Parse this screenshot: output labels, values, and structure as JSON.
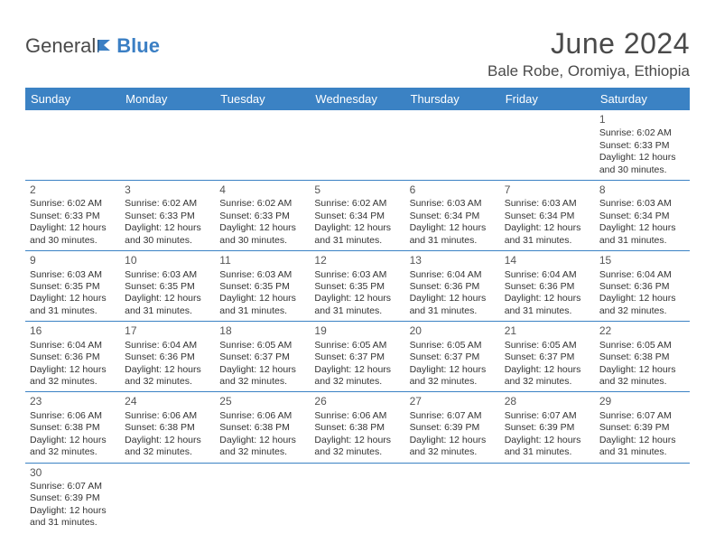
{
  "brand": {
    "part1": "General",
    "part2": "Blue"
  },
  "title": "June 2024",
  "location": "Bale Robe, Oromiya, Ethiopia",
  "colors": {
    "header_bg": "#3b82c4",
    "header_text": "#ffffff",
    "cell_border": "#3b82c4",
    "body_text": "#333333",
    "title_text": "#4a4a4a",
    "background": "#ffffff"
  },
  "typography": {
    "title_fontsize": 32,
    "location_fontsize": 17,
    "dayheader_fontsize": 13,
    "cell_fontsize": 10.5,
    "daynum_fontsize": 12
  },
  "layout": {
    "columns": 7,
    "rows": 6,
    "first_weekday_index": 6
  },
  "weekdays": [
    "Sunday",
    "Monday",
    "Tuesday",
    "Wednesday",
    "Thursday",
    "Friday",
    "Saturday"
  ],
  "days": [
    {
      "n": 1,
      "sunrise": "6:02 AM",
      "sunset": "6:33 PM",
      "dl_h": 12,
      "dl_m": 30
    },
    {
      "n": 2,
      "sunrise": "6:02 AM",
      "sunset": "6:33 PM",
      "dl_h": 12,
      "dl_m": 30
    },
    {
      "n": 3,
      "sunrise": "6:02 AM",
      "sunset": "6:33 PM",
      "dl_h": 12,
      "dl_m": 30
    },
    {
      "n": 4,
      "sunrise": "6:02 AM",
      "sunset": "6:33 PM",
      "dl_h": 12,
      "dl_m": 30
    },
    {
      "n": 5,
      "sunrise": "6:02 AM",
      "sunset": "6:34 PM",
      "dl_h": 12,
      "dl_m": 31
    },
    {
      "n": 6,
      "sunrise": "6:03 AM",
      "sunset": "6:34 PM",
      "dl_h": 12,
      "dl_m": 31
    },
    {
      "n": 7,
      "sunrise": "6:03 AM",
      "sunset": "6:34 PM",
      "dl_h": 12,
      "dl_m": 31
    },
    {
      "n": 8,
      "sunrise": "6:03 AM",
      "sunset": "6:34 PM",
      "dl_h": 12,
      "dl_m": 31
    },
    {
      "n": 9,
      "sunrise": "6:03 AM",
      "sunset": "6:35 PM",
      "dl_h": 12,
      "dl_m": 31
    },
    {
      "n": 10,
      "sunrise": "6:03 AM",
      "sunset": "6:35 PM",
      "dl_h": 12,
      "dl_m": 31
    },
    {
      "n": 11,
      "sunrise": "6:03 AM",
      "sunset": "6:35 PM",
      "dl_h": 12,
      "dl_m": 31
    },
    {
      "n": 12,
      "sunrise": "6:03 AM",
      "sunset": "6:35 PM",
      "dl_h": 12,
      "dl_m": 31
    },
    {
      "n": 13,
      "sunrise": "6:04 AM",
      "sunset": "6:36 PM",
      "dl_h": 12,
      "dl_m": 31
    },
    {
      "n": 14,
      "sunrise": "6:04 AM",
      "sunset": "6:36 PM",
      "dl_h": 12,
      "dl_m": 31
    },
    {
      "n": 15,
      "sunrise": "6:04 AM",
      "sunset": "6:36 PM",
      "dl_h": 12,
      "dl_m": 32
    },
    {
      "n": 16,
      "sunrise": "6:04 AM",
      "sunset": "6:36 PM",
      "dl_h": 12,
      "dl_m": 32
    },
    {
      "n": 17,
      "sunrise": "6:04 AM",
      "sunset": "6:36 PM",
      "dl_h": 12,
      "dl_m": 32
    },
    {
      "n": 18,
      "sunrise": "6:05 AM",
      "sunset": "6:37 PM",
      "dl_h": 12,
      "dl_m": 32
    },
    {
      "n": 19,
      "sunrise": "6:05 AM",
      "sunset": "6:37 PM",
      "dl_h": 12,
      "dl_m": 32
    },
    {
      "n": 20,
      "sunrise": "6:05 AM",
      "sunset": "6:37 PM",
      "dl_h": 12,
      "dl_m": 32
    },
    {
      "n": 21,
      "sunrise": "6:05 AM",
      "sunset": "6:37 PM",
      "dl_h": 12,
      "dl_m": 32
    },
    {
      "n": 22,
      "sunrise": "6:05 AM",
      "sunset": "6:38 PM",
      "dl_h": 12,
      "dl_m": 32
    },
    {
      "n": 23,
      "sunrise": "6:06 AM",
      "sunset": "6:38 PM",
      "dl_h": 12,
      "dl_m": 32
    },
    {
      "n": 24,
      "sunrise": "6:06 AM",
      "sunset": "6:38 PM",
      "dl_h": 12,
      "dl_m": 32
    },
    {
      "n": 25,
      "sunrise": "6:06 AM",
      "sunset": "6:38 PM",
      "dl_h": 12,
      "dl_m": 32
    },
    {
      "n": 26,
      "sunrise": "6:06 AM",
      "sunset": "6:38 PM",
      "dl_h": 12,
      "dl_m": 32
    },
    {
      "n": 27,
      "sunrise": "6:07 AM",
      "sunset": "6:39 PM",
      "dl_h": 12,
      "dl_m": 32
    },
    {
      "n": 28,
      "sunrise": "6:07 AM",
      "sunset": "6:39 PM",
      "dl_h": 12,
      "dl_m": 31
    },
    {
      "n": 29,
      "sunrise": "6:07 AM",
      "sunset": "6:39 PM",
      "dl_h": 12,
      "dl_m": 31
    },
    {
      "n": 30,
      "sunrise": "6:07 AM",
      "sunset": "6:39 PM",
      "dl_h": 12,
      "dl_m": 31
    }
  ],
  "labels": {
    "sunrise": "Sunrise:",
    "sunset": "Sunset:",
    "daylight_prefix": "Daylight:",
    "hours_word": "hours",
    "and_word": "and",
    "minutes_word": "minutes."
  }
}
